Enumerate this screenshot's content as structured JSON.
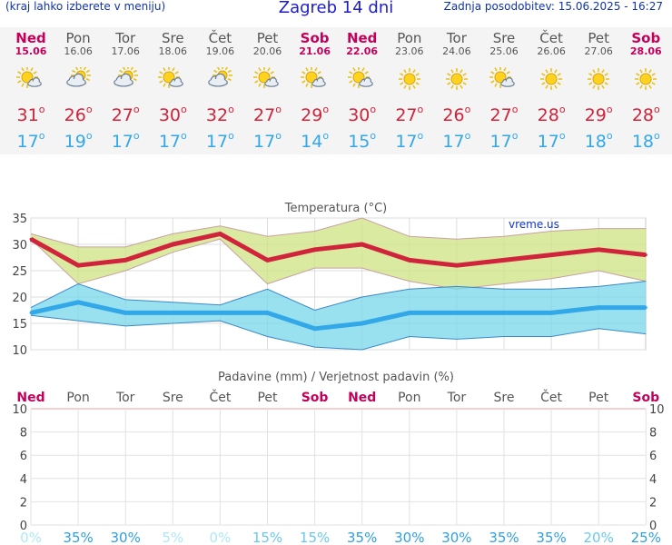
{
  "header": {
    "left_link": "(kraj lahko izberete v meniju)",
    "title": "Zagreb 14 dni",
    "updated": "Zadnja posodobitev: 15.06.2025 - 16:27"
  },
  "days": [
    {
      "name": "Ned",
      "date": "15.06",
      "weekend": true,
      "icon": "sun-cloud-icon",
      "max": "31",
      "min": "17"
    },
    {
      "name": "Pon",
      "date": "16.06",
      "weekend": false,
      "icon": "cloud-sun-icon",
      "max": "26",
      "min": "19"
    },
    {
      "name": "Tor",
      "date": "17.06",
      "weekend": false,
      "icon": "cloud-sun-icon",
      "max": "27",
      "min": "17"
    },
    {
      "name": "Sre",
      "date": "18.06",
      "weekend": false,
      "icon": "sun-cloud-icon",
      "max": "30",
      "min": "17"
    },
    {
      "name": "Čet",
      "date": "19.06",
      "weekend": false,
      "icon": "cloud-sun-icon",
      "max": "32",
      "min": "17"
    },
    {
      "name": "Pet",
      "date": "20.06",
      "weekend": false,
      "icon": "sun-cloud-icon",
      "max": "27",
      "min": "17"
    },
    {
      "name": "Sob",
      "date": "21.06",
      "weekend": true,
      "icon": "sun-cloud-icon",
      "max": "29",
      "min": "14"
    },
    {
      "name": "Ned",
      "date": "22.06",
      "weekend": true,
      "icon": "sun-cloud-icon",
      "max": "30",
      "min": "15"
    },
    {
      "name": "Pon",
      "date": "23.06",
      "weekend": false,
      "icon": "sun-icon",
      "max": "27",
      "min": "17"
    },
    {
      "name": "Tor",
      "date": "24.06",
      "weekend": false,
      "icon": "sun-icon",
      "max": "26",
      "min": "17"
    },
    {
      "name": "Sre",
      "date": "25.06",
      "weekend": false,
      "icon": "sun-cloud-icon",
      "max": "27",
      "min": "17"
    },
    {
      "name": "Čet",
      "date": "26.06",
      "weekend": false,
      "icon": "sun-icon",
      "max": "28",
      "min": "17"
    },
    {
      "name": "Pet",
      "date": "27.06",
      "weekend": false,
      "icon": "sun-icon",
      "max": "29",
      "min": "18"
    },
    {
      "name": "Sob",
      "date": "28.06",
      "weekend": true,
      "icon": "sun-icon",
      "max": "28",
      "min": "18"
    }
  ],
  "chart_data": [
    {
      "type": "line",
      "title": "Temperatura (°C)",
      "watermark": "vreme.us",
      "x": [
        "15.06",
        "16.06",
        "17.06",
        "18.06",
        "19.06",
        "20.06",
        "21.06",
        "22.06",
        "23.06",
        "24.06",
        "25.06",
        "26.06",
        "27.06",
        "28.06"
      ],
      "ylim": [
        10,
        35
      ],
      "yticks": [
        10,
        15,
        20,
        25,
        30,
        35
      ],
      "grid": true,
      "series": [
        {
          "role": "max",
          "color": "#d0243c",
          "values": [
            31,
            26,
            27,
            30,
            32,
            27,
            29,
            30,
            27,
            26,
            27,
            28,
            29,
            28
          ]
        },
        {
          "role": "max_upper",
          "color": "#d8e898",
          "values": [
            32,
            29.5,
            29.5,
            32,
            33.5,
            31.5,
            32.5,
            35,
            31.5,
            31,
            31.5,
            32.5,
            33,
            33
          ]
        },
        {
          "role": "max_lower",
          "color": "#d8e898",
          "values": [
            31,
            22.5,
            25,
            28.5,
            31,
            22.5,
            25.5,
            25.5,
            23,
            21.5,
            22.5,
            23.5,
            25,
            23
          ]
        },
        {
          "role": "min",
          "color": "#32a8e8",
          "values": [
            17,
            19,
            17,
            17,
            17,
            17,
            14,
            15,
            17,
            17,
            17,
            17,
            18,
            18
          ]
        },
        {
          "role": "min_upper",
          "color": "#9adcea",
          "values": [
            18,
            22.5,
            19.5,
            19,
            18.5,
            21.5,
            17.5,
            20,
            21.5,
            22,
            21.5,
            21.5,
            22,
            23
          ]
        },
        {
          "role": "min_lower",
          "color": "#9adcea",
          "values": [
            16.5,
            15.5,
            14.5,
            15,
            15.5,
            12.5,
            10.5,
            10,
            12.5,
            12,
            12.5,
            12.5,
            14,
            13
          ]
        }
      ]
    },
    {
      "type": "bar",
      "title": "Padavine (mm) / Verjetnost padavin (%)",
      "categories": [
        "Ned",
        "Pon",
        "Tor",
        "Sre",
        "Čet",
        "Pet",
        "Sob",
        "Ned",
        "Pon",
        "Tor",
        "Sre",
        "Čet",
        "Pet",
        "Sob"
      ],
      "weekend": [
        true,
        false,
        false,
        false,
        false,
        false,
        true,
        true,
        false,
        false,
        false,
        false,
        false,
        true
      ],
      "values": [
        0,
        0,
        0,
        0,
        0,
        0,
        0,
        0,
        0,
        0,
        0,
        0,
        0,
        0
      ],
      "ylim": [
        0,
        10
      ],
      "yticks": [
        0,
        2,
        4,
        6,
        8,
        10
      ],
      "probability": [
        "0%",
        "35%",
        "30%",
        "5%",
        "0%",
        "15%",
        "15%",
        "35%",
        "30%",
        "30%",
        "35%",
        "35%",
        "20%",
        "25%"
      ],
      "probability_colors": [
        "#aee8f5",
        "#2f9fe0",
        "#2f9fe0",
        "#aee8f5",
        "#aee8f5",
        "#6ac8ee",
        "#6ac8ee",
        "#2f9fe0",
        "#2f9fe0",
        "#2f9fe0",
        "#2f9fe0",
        "#2f9fe0",
        "#6ac8ee",
        "#2f9fe0"
      ]
    }
  ]
}
